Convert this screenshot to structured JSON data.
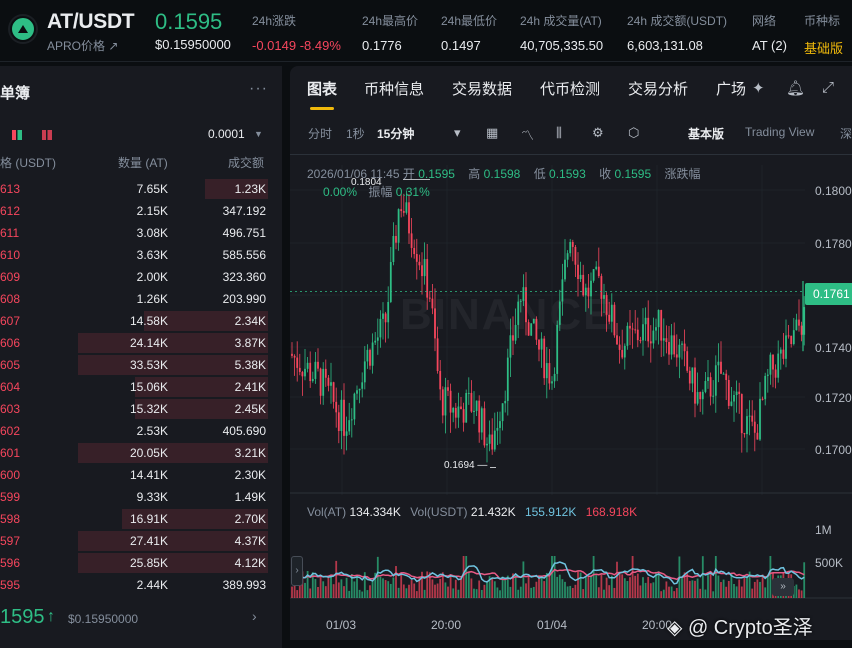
{
  "header": {
    "pair": "AT/USDT",
    "subname": "APRO价格 ↗",
    "last_price": "0.1595",
    "usd_price": "$0.15950000",
    "stats": [
      {
        "label": "24h涨跌",
        "value": "-0.0149 -8.49%",
        "tone": "down"
      },
      {
        "label": "24h最高价",
        "value": "0.1776",
        "tone": "normal"
      },
      {
        "label": "24h最低价",
        "value": "0.1497",
        "tone": "normal"
      },
      {
        "label": "24h 成交量(AT)",
        "value": "40,705,335.50",
        "tone": "normal"
      },
      {
        "label": "24h 成交额(USDT)",
        "value": "6,603,131.08",
        "tone": "normal"
      },
      {
        "label": "网络",
        "value": "AT (2)",
        "tone": "normal"
      },
      {
        "label": "币种标",
        "value": "基础版",
        "tone": "gold"
      }
    ]
  },
  "orderbook": {
    "title": "单簿",
    "more": "···",
    "precision": "0.0001",
    "col_price": "格 (USDT)",
    "col_qty": "数量 (AT)",
    "col_total": "成交额",
    "rows": [
      {
        "price": "613",
        "qty": "7.65K",
        "total": "1.23K",
        "depth": 0.33
      },
      {
        "price": "612",
        "qty": "2.15K",
        "total": "347.192",
        "depth": 0.0
      },
      {
        "price": "611",
        "qty": "3.08K",
        "total": "496.751",
        "depth": 0.0
      },
      {
        "price": "610",
        "qty": "3.63K",
        "total": "585.556",
        "depth": 0.0
      },
      {
        "price": "609",
        "qty": "2.00K",
        "total": "323.360",
        "depth": 0.0
      },
      {
        "price": "608",
        "qty": "1.26K",
        "total": "203.990",
        "depth": 0.0
      },
      {
        "price": "607",
        "qty": "14.58K",
        "total": "2.34K",
        "depth": 0.65
      },
      {
        "price": "606",
        "qty": "24.14K",
        "total": "3.87K",
        "depth": 1.0
      },
      {
        "price": "605",
        "qty": "33.53K",
        "total": "5.38K",
        "depth": 1.0
      },
      {
        "price": "604",
        "qty": "15.06K",
        "total": "2.41K",
        "depth": 0.7
      },
      {
        "price": "603",
        "qty": "15.32K",
        "total": "2.45K",
        "depth": 0.7
      },
      {
        "price": "602",
        "qty": "2.53K",
        "total": "405.690",
        "depth": 0.0
      },
      {
        "price": "601",
        "qty": "20.05K",
        "total": "3.21K",
        "depth": 1.0
      },
      {
        "price": "600",
        "qty": "14.41K",
        "total": "2.30K",
        "depth": 0.0
      },
      {
        "price": "599",
        "qty": "9.33K",
        "total": "1.49K",
        "depth": 0.0
      },
      {
        "price": "598",
        "qty": "16.91K",
        "total": "2.70K",
        "depth": 0.77
      },
      {
        "price": "597",
        "qty": "27.41K",
        "total": "4.37K",
        "depth": 1.0
      },
      {
        "price": "596",
        "qty": "25.85K",
        "total": "4.12K",
        "depth": 1.0
      },
      {
        "price": "595",
        "qty": "2.44K",
        "total": "389.993",
        "depth": 0.0
      }
    ],
    "last_price": "1595",
    "arrow": "↑",
    "usd": "$0.15950000",
    "chevron": "›"
  },
  "chart_panel": {
    "tabs": [
      "图表",
      "币种信息",
      "交易数据",
      "代币检测",
      "交易分析",
      "广场"
    ],
    "intervals": [
      "分时",
      "1秒",
      "15分钟"
    ],
    "mode_basic": "基本版",
    "mode_tv": "Trading View",
    "mode_more": "深",
    "ohlc": {
      "date": "2026/01/06 11:45",
      "open_lbl": "开",
      "open": "0.1595",
      "high_lbl": "高",
      "high": "0.1598",
      "low_lbl": "低",
      "low": "0.1593",
      "close_lbl": "收",
      "close": "0.1595",
      "chg_lbl": "涨跌幅",
      "chg": "0.00%",
      "amp_lbl": "振幅",
      "amp": "0.31%"
    },
    "high_marker": "0.1804",
    "low_marker": "0.1694 —",
    "current_tag": "0.1761",
    "y_ticks": [
      "0.1800",
      "0.1780",
      "0.1760",
      "0.1740",
      "0.1720",
      "0.1700"
    ],
    "vol_legend": {
      "vol_at_lbl": "Vol(AT)",
      "vol_at": "134.334K",
      "vol_usdt_lbl": "Vol(USDT)",
      "vol_usdt": "21.432K",
      "ma1": "155.912K",
      "ma2": "168.918K"
    },
    "vol_ticks": [
      "1M",
      "500K"
    ],
    "x_ticks": [
      "01/03",
      "20:00",
      "01/04",
      "20:00"
    ],
    "watermark": "BINANCE",
    "signature": "Crypto圣泽",
    "colors": {
      "up": "#2ebd85",
      "down": "#f6465d",
      "accent": "#f0b90b"
    }
  }
}
